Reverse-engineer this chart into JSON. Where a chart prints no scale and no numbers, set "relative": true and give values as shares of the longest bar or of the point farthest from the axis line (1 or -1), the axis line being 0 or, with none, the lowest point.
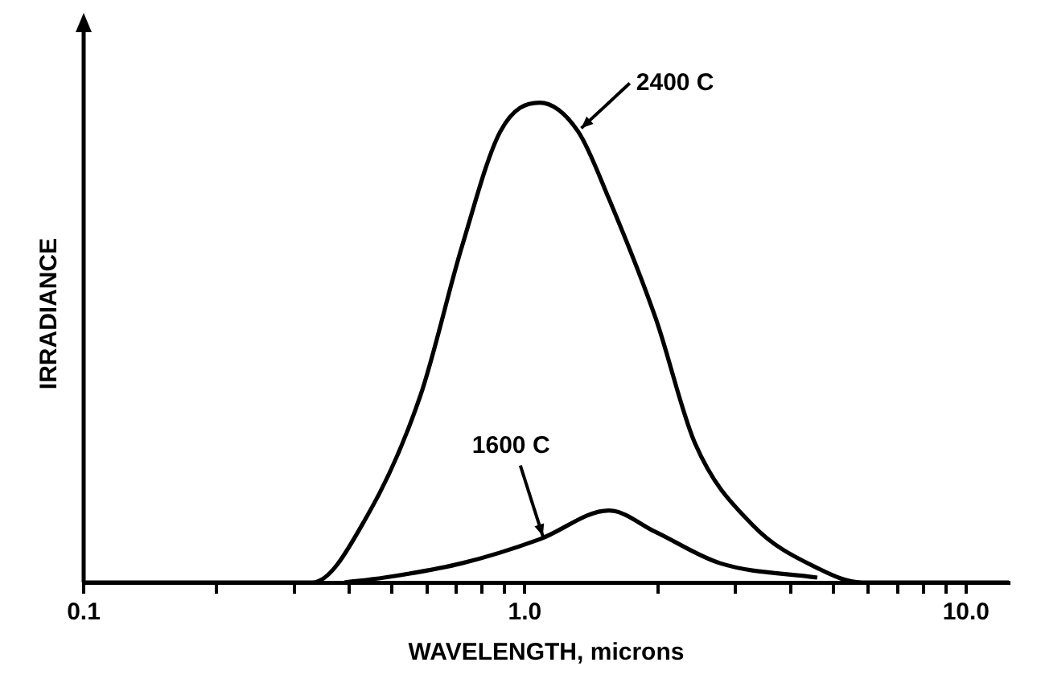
{
  "chart_data": {
    "type": "line",
    "xlabel": "WAVELENGTH, microns",
    "ylabel": "IRRADIANCE",
    "relative": true,
    "log": "x",
    "xlim": [
      0.1,
      12.5
    ],
    "xticks": [
      {
        "value": 0.1,
        "label": "0.1"
      },
      {
        "value": 0.2,
        "label": null
      },
      {
        "value": 0.3,
        "label": null
      },
      {
        "value": 0.4,
        "label": null
      },
      {
        "value": 0.5,
        "label": null
      },
      {
        "value": 0.6,
        "label": null
      },
      {
        "value": 0.7,
        "label": null
      },
      {
        "value": 0.8,
        "label": null
      },
      {
        "value": 0.9,
        "label": null
      },
      {
        "value": 1,
        "label": "1.0"
      },
      {
        "value": 2,
        "label": null
      },
      {
        "value": 3,
        "label": null
      },
      {
        "value": 4,
        "label": null
      },
      {
        "value": 5,
        "label": null
      },
      {
        "value": 6,
        "label": null
      },
      {
        "value": 7,
        "label": null
      },
      {
        "value": 8,
        "label": null
      },
      {
        "value": 9,
        "label": null
      },
      {
        "value": 10,
        "label": "10.0"
      }
    ],
    "grid": false,
    "legend": false,
    "series": [
      {
        "name": "2400 C",
        "color": "#000000",
        "x": [
          0.1,
          0.33,
          0.44,
          0.58,
          0.72,
          0.88,
          1.08,
          1.32,
          1.55,
          1.98,
          2.43,
          3.28,
          4.6,
          5.8,
          12.5
        ],
        "values": [
          0,
          0,
          0.14,
          0.39,
          0.7,
          0.94,
          1,
          0.94,
          0.8,
          0.55,
          0.29,
          0.12,
          0.03,
          0,
          0
        ]
      },
      {
        "name": "1600 C",
        "color": "#000000",
        "x": [
          0.39,
          0.48,
          0.72,
          1.08,
          1.55,
          1.98,
          2.77,
          4.6
        ],
        "values": [
          0,
          0.01,
          0.04,
          0.09,
          0.15,
          0.105,
          0.04,
          0.01
        ]
      }
    ]
  }
}
